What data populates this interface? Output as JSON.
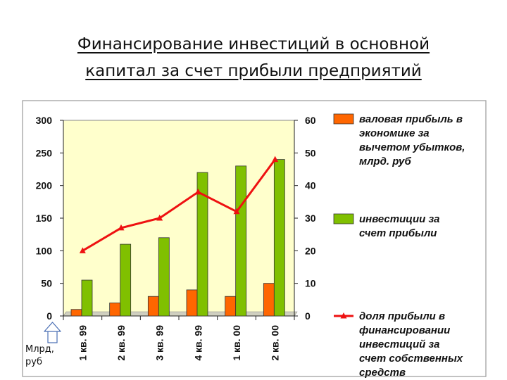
{
  "slide": {
    "title_line1": "Финансирование инвестиций в основной",
    "title_line2": "капитал за счет прибыли предприятий"
  },
  "unit_note": {
    "line1": "Млрд,",
    "line2": "руб"
  },
  "chart_data": {
    "type": "bar",
    "categories": [
      "1 кв. 99",
      "2 кв. 99",
      "3 кв. 99",
      "4 кв. 99",
      "1 кв. 00",
      "2 кв. 00"
    ],
    "series": [
      {
        "name": "валовая прибыль в экономике за вычетом убытков, млрд. руб",
        "name_lines": [
          "валовая прибыль в",
          "экономике за",
          "вычетом убытков,",
          "млрд. руб"
        ],
        "axis": "left",
        "values": [
          10,
          20,
          30,
          40,
          30,
          50
        ],
        "color": "#ff6600"
      },
      {
        "name": "инвестиции за счет прибыли",
        "name_lines": [
          "инвестиции за",
          "счет прибыли"
        ],
        "axis": "left",
        "values": [
          55,
          110,
          120,
          220,
          230,
          240
        ],
        "color": "#80c000"
      },
      {
        "name": "доля прибыли в финансировании инвестиций за счет собственных средств",
        "name_lines": [
          "доля прибыли в",
          "финансировании",
          "инвестиций за",
          "счет собственных",
          "средств"
        ],
        "axis": "right",
        "type": "line",
        "values": [
          20,
          27,
          30,
          38,
          32,
          48
        ],
        "color": "#ee1111"
      }
    ],
    "ylim_left": [
      0,
      300
    ],
    "yticks_left": [
      0,
      50,
      100,
      150,
      200,
      250,
      300
    ],
    "ylim_right": [
      0,
      60
    ],
    "yticks_right": [
      0,
      10,
      20,
      30,
      40,
      50,
      60
    ],
    "plot_background": "#ffffcc",
    "grid": false,
    "legend_position": "right"
  }
}
